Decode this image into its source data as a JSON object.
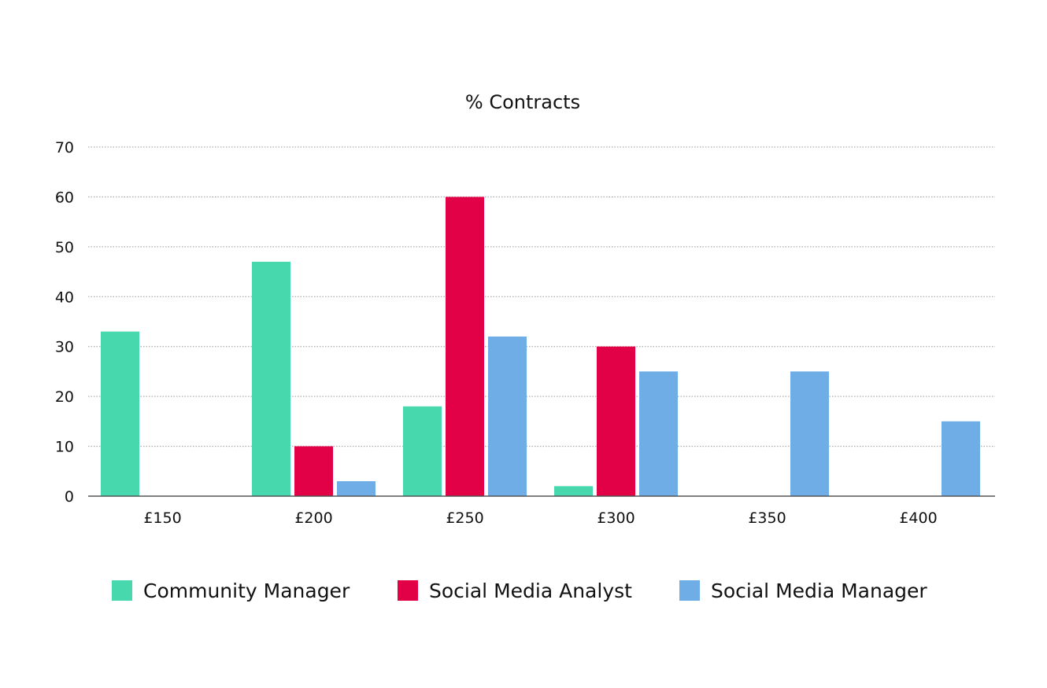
{
  "chart_data": {
    "type": "bar",
    "title": "% Contracts",
    "xlabel": "",
    "ylabel": "",
    "categories": [
      "£150",
      "£200",
      "£250",
      "£300",
      "£350",
      "£400"
    ],
    "series": [
      {
        "name": "Community Manager",
        "color": "#47d8ad",
        "values": [
          33,
          47,
          18,
          2,
          0,
          0
        ]
      },
      {
        "name": "Social Media Analyst",
        "color": "#e20046",
        "values": [
          0,
          10,
          60,
          30,
          0,
          0
        ]
      },
      {
        "name": "Social Media Manager",
        "color": "#6eade6",
        "values": [
          0,
          3,
          32,
          25,
          25,
          15
        ]
      }
    ],
    "ylim": [
      0,
      70
    ],
    "yticks": [
      0,
      10,
      20,
      30,
      40,
      50,
      60,
      70
    ],
    "grid": true,
    "legend_position": "bottom"
  }
}
